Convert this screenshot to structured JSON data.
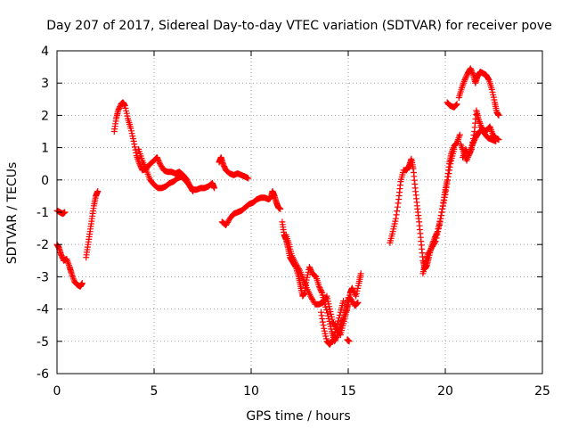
{
  "chart_data": {
    "type": "scatter",
    "title": "Day 207 of 2017, Sidereal Day-to-day VTEC variation (SDTVAR) for receiver pove",
    "xlabel": "GPS time / hours",
    "ylabel": "SDTVAR / TECUs",
    "xlim": [
      0,
      25
    ],
    "ylim": [
      -6,
      4
    ],
    "xticks": [
      "0",
      "5",
      "10",
      "15",
      "20",
      "25"
    ],
    "yticks": [
      "-6",
      "-5",
      "-4",
      "-3",
      "-2",
      "-1",
      "0",
      "1",
      "2",
      "3",
      "4"
    ],
    "grid": true,
    "marker": "+",
    "color": "#ff0000",
    "tracks": [
      [
        [
          0.0,
          -0.95
        ],
        [
          0.15,
          -1.0
        ],
        [
          0.3,
          -1.05
        ],
        [
          0.4,
          -1.0
        ]
      ],
      [
        [
          0.0,
          -2.0
        ],
        [
          0.1,
          -2.1
        ],
        [
          0.2,
          -2.3
        ],
        [
          0.35,
          -2.5
        ],
        [
          0.5,
          -2.45
        ],
        [
          0.65,
          -2.7
        ],
        [
          0.75,
          -2.9
        ],
        [
          0.9,
          -3.15
        ],
        [
          1.05,
          -3.25
        ],
        [
          1.2,
          -3.3
        ],
        [
          1.3,
          -3.2
        ]
      ],
      [
        [
          1.5,
          -2.4
        ],
        [
          1.6,
          -2.0
        ],
        [
          1.7,
          -1.6
        ],
        [
          1.8,
          -1.2
        ],
        [
          1.9,
          -0.8
        ],
        [
          2.0,
          -0.5
        ],
        [
          2.1,
          -0.35
        ]
      ],
      [
        [
          2.95,
          1.5
        ],
        [
          3.05,
          1.9
        ],
        [
          3.15,
          2.15
        ],
        [
          3.3,
          2.35
        ],
        [
          3.4,
          2.4
        ],
        [
          3.5,
          2.3
        ],
        [
          3.65,
          1.9
        ],
        [
          3.8,
          1.6
        ],
        [
          3.95,
          1.2
        ],
        [
          4.1,
          0.75
        ],
        [
          4.25,
          0.5
        ],
        [
          4.4,
          0.3
        ],
        [
          4.6,
          0.35
        ],
        [
          4.8,
          0.5
        ],
        [
          5.0,
          0.6
        ],
        [
          5.15,
          0.7
        ],
        [
          5.3,
          0.5
        ],
        [
          5.5,
          0.3
        ],
        [
          5.7,
          0.25
        ],
        [
          5.9,
          0.25
        ],
        [
          6.1,
          0.2
        ],
        [
          6.3,
          0.25
        ],
        [
          6.5,
          0.15
        ],
        [
          6.7,
          0.0
        ],
        [
          6.85,
          -0.2
        ],
        [
          7.0,
          -0.35
        ]
      ],
      [
        [
          4.2,
          0.95
        ],
        [
          4.4,
          0.6
        ],
        [
          4.6,
          0.3
        ],
        [
          4.8,
          0.0
        ],
        [
          5.0,
          -0.15
        ],
        [
          5.2,
          -0.25
        ],
        [
          5.4,
          -0.25
        ],
        [
          5.6,
          -0.2
        ],
        [
          5.8,
          -0.1
        ],
        [
          6.0,
          -0.05
        ],
        [
          6.2,
          0.05
        ],
        [
          6.4,
          0.1
        ],
        [
          6.6,
          0.0
        ],
        [
          6.8,
          -0.15
        ],
        [
          7.0,
          -0.3
        ],
        [
          7.2,
          -0.3
        ],
        [
          7.4,
          -0.25
        ],
        [
          7.6,
          -0.25
        ],
        [
          7.8,
          -0.2
        ],
        [
          8.0,
          -0.1
        ],
        [
          8.1,
          -0.25
        ]
      ],
      [
        [
          8.35,
          0.55
        ],
        [
          8.45,
          0.7
        ],
        [
          8.55,
          0.5
        ],
        [
          8.7,
          0.3
        ],
        [
          8.9,
          0.2
        ],
        [
          9.1,
          0.15
        ],
        [
          9.3,
          0.2
        ],
        [
          9.5,
          0.15
        ],
        [
          9.7,
          0.1
        ],
        [
          9.85,
          0.05
        ]
      ],
      [
        [
          8.5,
          -1.3
        ],
        [
          8.7,
          -1.4
        ],
        [
          8.9,
          -1.2
        ],
        [
          9.1,
          -1.05
        ],
        [
          9.3,
          -1.0
        ],
        [
          9.5,
          -0.95
        ],
        [
          9.7,
          -0.85
        ],
        [
          9.9,
          -0.75
        ],
        [
          10.1,
          -0.7
        ],
        [
          10.3,
          -0.6
        ],
        [
          10.5,
          -0.55
        ],
        [
          10.7,
          -0.55
        ],
        [
          10.9,
          -0.6
        ],
        [
          11.0,
          -0.55
        ],
        [
          11.1,
          -0.35
        ],
        [
          11.2,
          -0.5
        ],
        [
          11.3,
          -0.7
        ],
        [
          11.4,
          -0.85
        ],
        [
          11.5,
          -0.9
        ]
      ],
      [
        [
          11.6,
          -1.3
        ],
        [
          11.7,
          -1.7
        ],
        [
          11.8,
          -1.85
        ],
        [
          11.9,
          -2.1
        ],
        [
          12.0,
          -2.4
        ],
        [
          12.15,
          -2.55
        ],
        [
          12.3,
          -2.7
        ],
        [
          12.45,
          -3.0
        ],
        [
          12.55,
          -3.3
        ],
        [
          12.65,
          -3.6
        ],
        [
          12.75,
          -3.5
        ],
        [
          12.85,
          -3.1
        ],
        [
          13.0,
          -2.7
        ],
        [
          13.15,
          -2.9
        ],
        [
          13.35,
          -3.0
        ],
        [
          13.5,
          -3.3
        ],
        [
          13.65,
          -3.5
        ],
        [
          13.8,
          -3.85
        ],
        [
          14.0,
          -4.3
        ],
        [
          14.15,
          -4.7
        ],
        [
          14.3,
          -5.0
        ],
        [
          14.45,
          -4.8
        ],
        [
          14.6,
          -4.5
        ],
        [
          14.75,
          -4.3
        ],
        [
          14.9,
          -4.0
        ],
        [
          15.0,
          -3.65
        ],
        [
          15.15,
          -3.7
        ],
        [
          15.35,
          -3.9
        ],
        [
          15.5,
          -3.8
        ]
      ],
      [
        [
          11.8,
          -1.7
        ],
        [
          11.95,
          -2.0
        ],
        [
          12.1,
          -2.35
        ],
        [
          12.3,
          -2.6
        ],
        [
          12.5,
          -2.8
        ],
        [
          12.7,
          -3.1
        ],
        [
          12.9,
          -3.4
        ],
        [
          13.1,
          -3.65
        ],
        [
          13.3,
          -3.85
        ],
        [
          13.5,
          -3.85
        ],
        [
          13.7,
          -3.8
        ],
        [
          13.9,
          -3.6
        ],
        [
          14.05,
          -4.0
        ],
        [
          14.2,
          -4.4
        ],
        [
          14.4,
          -4.6
        ],
        [
          14.6,
          -4.8
        ],
        [
          14.75,
          -4.45
        ],
        [
          14.9,
          -4.1
        ],
        [
          15.0,
          -3.85
        ],
        [
          15.1,
          -3.5
        ],
        [
          15.2,
          -3.35
        ],
        [
          15.4,
          -3.6
        ],
        [
          15.55,
          -3.2
        ],
        [
          15.65,
          -2.9
        ]
      ],
      [
        [
          13.6,
          -4.1
        ],
        [
          13.75,
          -4.6
        ],
        [
          13.9,
          -5.0
        ],
        [
          14.05,
          -5.1
        ],
        [
          14.2,
          -4.95
        ],
        [
          14.4,
          -4.55
        ],
        [
          14.6,
          -4.1
        ],
        [
          14.75,
          -3.75
        ]
      ],
      [
        [
          14.95,
          -4.95
        ],
        [
          15.05,
          -5.0
        ]
      ],
      [
        [
          17.15,
          -1.95
        ],
        [
          17.3,
          -1.6
        ],
        [
          17.45,
          -1.2
        ],
        [
          17.6,
          -0.6
        ],
        [
          17.7,
          -0.05
        ],
        [
          17.85,
          0.3
        ],
        [
          18.0,
          0.3
        ],
        [
          18.15,
          0.45
        ],
        [
          18.25,
          0.65
        ],
        [
          18.35,
          0.35
        ],
        [
          18.45,
          -0.25
        ],
        [
          18.55,
          -0.8
        ],
        [
          18.65,
          -1.3
        ],
        [
          18.75,
          -1.9
        ],
        [
          18.85,
          -2.5
        ],
        [
          18.95,
          -2.75
        ],
        [
          19.05,
          -2.65
        ],
        [
          19.15,
          -2.4
        ],
        [
          19.3,
          -2.05
        ],
        [
          19.45,
          -1.8
        ],
        [
          19.6,
          -1.6
        ],
        [
          19.75,
          -1.2
        ],
        [
          19.9,
          -0.7
        ],
        [
          20.0,
          -0.3
        ],
        [
          20.1,
          0.0
        ],
        [
          20.2,
          0.5
        ],
        [
          20.3,
          0.8
        ],
        [
          20.45,
          1.05
        ],
        [
          20.6,
          1.15
        ],
        [
          20.75,
          1.4
        ]
      ],
      [
        [
          18.85,
          -2.9
        ],
        [
          18.95,
          -2.6
        ],
        [
          19.1,
          -2.3
        ],
        [
          19.3,
          -2.1
        ],
        [
          19.5,
          -1.9
        ],
        [
          19.7,
          -1.4
        ],
        [
          19.85,
          -0.9
        ],
        [
          20.0,
          -0.45
        ],
        [
          20.15,
          0.1
        ],
        [
          20.3,
          0.6
        ],
        [
          20.45,
          0.95
        ]
      ],
      [
        [
          20.1,
          2.4
        ],
        [
          20.25,
          2.3
        ],
        [
          20.45,
          2.25
        ],
        [
          20.6,
          2.35
        ]
      ],
      [
        [
          20.7,
          2.55
        ],
        [
          20.85,
          2.85
        ],
        [
          21.0,
          3.1
        ],
        [
          21.15,
          3.3
        ],
        [
          21.3,
          3.45
        ],
        [
          21.45,
          3.25
        ],
        [
          21.55,
          3.0
        ],
        [
          21.65,
          3.2
        ],
        [
          21.8,
          3.35
        ],
        [
          21.95,
          3.3
        ],
        [
          22.1,
          3.25
        ],
        [
          22.25,
          3.1
        ],
        [
          22.4,
          2.8
        ],
        [
          22.55,
          2.4
        ],
        [
          22.65,
          2.1
        ],
        [
          22.75,
          2.0
        ]
      ],
      [
        [
          20.9,
          0.7
        ],
        [
          21.05,
          0.95
        ],
        [
          21.2,
          0.75
        ],
        [
          21.35,
          0.95
        ],
        [
          21.5,
          1.5
        ],
        [
          21.6,
          2.15
        ],
        [
          21.7,
          1.9
        ],
        [
          21.85,
          1.65
        ],
        [
          22.0,
          1.5
        ],
        [
          22.15,
          1.55
        ],
        [
          22.3,
          1.65
        ],
        [
          22.45,
          1.4
        ],
        [
          22.6,
          1.3
        ],
        [
          22.75,
          1.25
        ]
      ],
      [
        [
          20.8,
          1.1
        ],
        [
          20.95,
          0.85
        ],
        [
          21.1,
          0.6
        ],
        [
          21.25,
          0.85
        ],
        [
          21.4,
          1.1
        ],
        [
          21.55,
          1.3
        ],
        [
          21.7,
          1.45
        ],
        [
          21.85,
          1.55
        ],
        [
          22.0,
          1.45
        ],
        [
          22.2,
          1.3
        ],
        [
          22.4,
          1.25
        ],
        [
          22.6,
          1.2
        ]
      ]
    ]
  }
}
